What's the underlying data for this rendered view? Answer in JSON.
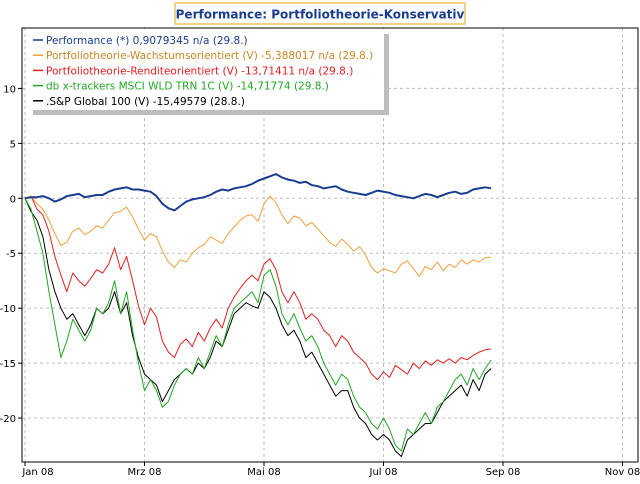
{
  "chart_data": {
    "type": "line",
    "title": "Performance: Portfoliotheorie-Konservativ",
    "xlabel": "",
    "ylabel": "",
    "x_ticks": [
      "Jan 08",
      "Mrz 08",
      "Mai 08",
      "Jul 08",
      "Sep 08",
      "Nov 08"
    ],
    "x_range": [
      "Jan 08",
      "Nov 08"
    ],
    "y_ticks": [
      10,
      5,
      0,
      -5,
      -10,
      -15,
      -20
    ],
    "ylim": [
      -24,
      15.5
    ],
    "grid": true,
    "legend_position": "top-left",
    "x_positions": [
      0.0,
      0.1,
      0.2,
      0.3,
      0.4,
      0.5,
      0.6,
      0.7,
      0.8,
      0.9,
      1.0,
      1.1,
      1.2,
      1.3,
      1.4,
      1.5,
      1.6,
      1.7,
      1.8,
      1.9,
      2.0,
      2.1,
      2.2,
      2.3,
      2.4,
      2.5,
      2.6,
      2.7,
      2.8,
      2.9,
      3.0,
      3.1,
      3.2,
      3.3,
      3.4,
      3.5,
      3.6,
      3.7,
      3.8,
      3.9,
      4.0,
      4.1,
      4.2,
      4.3,
      4.4,
      4.5,
      4.6,
      4.7,
      4.8,
      4.9,
      5.0,
      5.1,
      5.2,
      5.3,
      5.4,
      5.5,
      5.6,
      5.7,
      5.8,
      5.9,
      6.0,
      6.1,
      6.2,
      6.3,
      6.4,
      6.5,
      6.6,
      6.7,
      6.8,
      6.9,
      7.0,
      7.1,
      7.2,
      7.3,
      7.4,
      7.5,
      7.6,
      7.7,
      7.8
    ],
    "series": [
      {
        "name": "Performance (*) 0,9079345 n/a (29.8.)",
        "color": "#1a3d8f",
        "width": 2,
        "values": [
          0.0,
          0.1,
          0.1,
          0.2,
          0.0,
          -0.3,
          -0.1,
          0.2,
          0.3,
          0.4,
          0.1,
          0.2,
          0.3,
          0.3,
          0.6,
          0.8,
          0.9,
          1.0,
          0.8,
          0.8,
          0.7,
          0.6,
          0.2,
          -0.5,
          -0.9,
          -1.1,
          -0.7,
          -0.3,
          -0.1,
          0.0,
          0.1,
          0.3,
          0.6,
          0.8,
          0.7,
          0.9,
          1.0,
          1.1,
          1.3,
          1.6,
          1.8,
          2.0,
          2.2,
          1.9,
          1.7,
          1.6,
          1.4,
          1.5,
          1.2,
          1.1,
          0.9,
          1.0,
          1.1,
          0.8,
          0.6,
          0.5,
          0.4,
          0.3,
          0.5,
          0.7,
          0.6,
          0.5,
          0.3,
          0.2,
          0.1,
          0.0,
          0.2,
          0.4,
          0.3,
          0.1,
          0.3,
          0.5,
          0.6,
          0.4,
          0.5,
          0.8,
          0.9,
          1.0,
          0.91
        ]
      },
      {
        "name": "Portfoliotheorie-Wachstumsorientiert (V) -5,388017 n/a (29.8.)",
        "color": "#f0a040",
        "width": 1,
        "values": [
          0.0,
          0.2,
          -0.5,
          -1.0,
          -2.0,
          -3.2,
          -4.3,
          -4.0,
          -3.0,
          -2.7,
          -3.3,
          -3.0,
          -2.5,
          -2.7,
          -2.0,
          -1.3,
          -1.2,
          -0.8,
          -1.7,
          -2.8,
          -3.8,
          -3.2,
          -3.5,
          -4.8,
          -5.8,
          -6.3,
          -5.6,
          -5.8,
          -5.0,
          -4.5,
          -4.2,
          -3.5,
          -3.8,
          -4.1,
          -3.2,
          -2.6,
          -2.0,
          -1.6,
          -1.5,
          -2.1,
          -0.5,
          0.2,
          -0.4,
          -1.5,
          -2.3,
          -1.6,
          -1.8,
          -2.5,
          -2.2,
          -2.8,
          -3.4,
          -4.0,
          -4.4,
          -3.7,
          -4.2,
          -4.8,
          -4.4,
          -5.2,
          -6.3,
          -6.8,
          -6.4,
          -6.6,
          -6.8,
          -6.0,
          -5.7,
          -6.4,
          -7.1,
          -6.2,
          -6.5,
          -5.8,
          -6.6,
          -6.0,
          -6.3,
          -5.6,
          -6.0,
          -5.6,
          -5.8,
          -5.4,
          -5.39
        ]
      },
      {
        "name": "Portfoliotheorie-Renditeorientiert (V) -13,71411 n/a (29.8.)",
        "color": "#e02020",
        "width": 1,
        "values": [
          0.0,
          0.2,
          -1.0,
          -1.5,
          -3.0,
          -5.3,
          -7.0,
          -8.5,
          -6.8,
          -7.5,
          -8.0,
          -7.3,
          -6.5,
          -6.8,
          -6.0,
          -4.5,
          -6.5,
          -5.3,
          -7.5,
          -9.8,
          -11.5,
          -10.0,
          -10.8,
          -13.0,
          -14.0,
          -14.5,
          -13.3,
          -12.8,
          -13.5,
          -12.2,
          -13.0,
          -11.8,
          -11.0,
          -11.8,
          -10.0,
          -9.0,
          -8.2,
          -7.5,
          -7.0,
          -7.5,
          -6.0,
          -5.5,
          -6.5,
          -8.5,
          -9.5,
          -8.5,
          -9.5,
          -11.0,
          -10.5,
          -11.0,
          -12.0,
          -12.5,
          -13.5,
          -12.5,
          -13.0,
          -14.0,
          -14.5,
          -15.0,
          -16.0,
          -16.5,
          -15.8,
          -16.3,
          -15.2,
          -15.6,
          -16.0,
          -15.0,
          -15.5,
          -14.8,
          -15.2,
          -14.7,
          -15.0,
          -14.6,
          -15.0,
          -14.5,
          -14.7,
          -14.3,
          -14.0,
          -13.8,
          -13.71
        ]
      },
      {
        "name": "db x-trackers MSCI WLD TRN 1C (V) -14,71774 (29.8.)",
        "color": "#22a622",
        "width": 1,
        "values": [
          0.0,
          -1.0,
          -3.0,
          -5.0,
          -8.5,
          -11.5,
          -14.5,
          -13.0,
          -11.0,
          -12.0,
          -13.0,
          -12.0,
          -10.0,
          -10.5,
          -9.5,
          -7.5,
          -10.5,
          -8.5,
          -12.0,
          -15.0,
          -17.5,
          -16.5,
          -17.5,
          -19.0,
          -18.5,
          -17.0,
          -16.0,
          -15.5,
          -16.0,
          -14.5,
          -15.5,
          -14.0,
          -12.5,
          -13.5,
          -11.5,
          -10.0,
          -9.5,
          -9.0,
          -8.5,
          -9.5,
          -7.0,
          -6.5,
          -8.0,
          -10.5,
          -11.5,
          -10.5,
          -11.8,
          -13.0,
          -12.5,
          -13.5,
          -15.0,
          -16.0,
          -17.0,
          -16.0,
          -16.5,
          -18.0,
          -19.0,
          -19.5,
          -20.5,
          -21.0,
          -20.0,
          -21.0,
          -22.5,
          -23.0,
          -21.0,
          -21.5,
          -20.5,
          -19.5,
          -20.5,
          -19.0,
          -18.5,
          -17.5,
          -16.5,
          -16.0,
          -17.0,
          -15.5,
          -16.5,
          -15.5,
          -14.72
        ]
      },
      {
        "name": ".S&P Global 100 (V) -15,49579 (28.8.)",
        "color": "#000000",
        "width": 1,
        "values": [
          0.0,
          -1.2,
          -2.0,
          -3.5,
          -6.5,
          -8.5,
          -10.0,
          -11.0,
          -10.5,
          -11.5,
          -12.5,
          -11.5,
          -10.0,
          -10.5,
          -10.0,
          -8.5,
          -10.5,
          -9.5,
          -12.5,
          -14.5,
          -16.0,
          -16.5,
          -17.0,
          -18.5,
          -17.5,
          -16.5,
          -16.0,
          -15.5,
          -16.0,
          -15.0,
          -15.5,
          -14.5,
          -13.0,
          -13.5,
          -12.0,
          -10.5,
          -10.0,
          -9.5,
          -9.8,
          -10.0,
          -8.5,
          -9.0,
          -10.0,
          -11.5,
          -12.5,
          -12.0,
          -13.0,
          -14.5,
          -14.0,
          -15.0,
          -16.0,
          -17.0,
          -18.0,
          -17.5,
          -17.5,
          -19.0,
          -20.0,
          -20.5,
          -21.5,
          -22.0,
          -21.5,
          -22.0,
          -23.0,
          -23.5,
          -22.0,
          -21.5,
          -21.0,
          -20.5,
          -20.5,
          -19.5,
          -18.5,
          -18.0,
          -17.5,
          -17.0,
          -18.0,
          -16.5,
          -17.5,
          -16.0,
          -15.5
        ]
      }
    ]
  }
}
